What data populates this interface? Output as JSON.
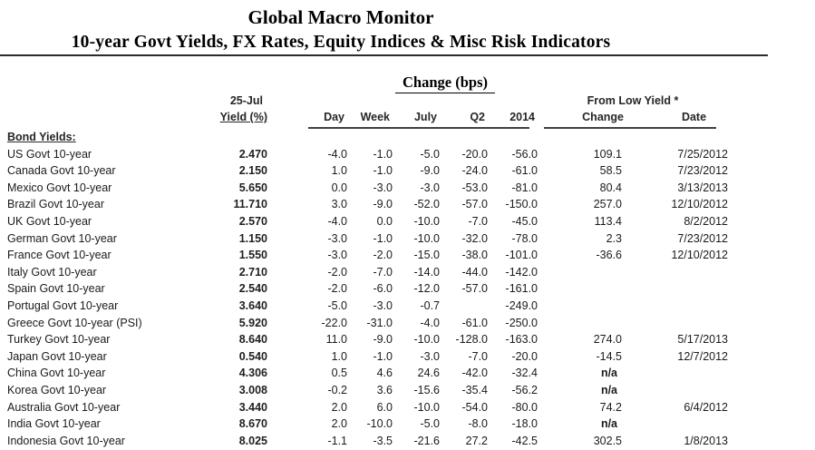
{
  "page": {
    "title": "Global Macro Monitor",
    "subtitle": "10-year Govt Yields, FX Rates, Equity Indices & Misc Risk Indicators"
  },
  "table": {
    "group_change": "Change (bps)",
    "group_from_low": "From Low Yield  *",
    "col_yield_line1": "25-Jul",
    "col_yield_line2": "Yield (%)",
    "col_day": "Day",
    "col_week": "Week",
    "col_july": "July",
    "col_q2": "Q2",
    "col_2014": "2014",
    "col_change": "Change",
    "col_date": "Date",
    "section": "Bond Yields:",
    "rows": [
      {
        "name": "US Govt 10-year",
        "yield": "2.470",
        "day": "-4.0",
        "week": "-1.0",
        "july": "-5.0",
        "q2": "-20.0",
        "y2014": "-56.0",
        "change": "109.1",
        "date": "7/25/2012"
      },
      {
        "name": "Canada Govt 10-year",
        "yield": "2.150",
        "day": "1.0",
        "week": "-1.0",
        "july": "-9.0",
        "q2": "-24.0",
        "y2014": "-61.0",
        "change": "58.5",
        "date": "7/23/2012"
      },
      {
        "name": "Mexico Govt 10-year",
        "yield": "5.650",
        "day": "0.0",
        "week": "-3.0",
        "july": "-3.0",
        "q2": "-53.0",
        "y2014": "-81.0",
        "change": "80.4",
        "date": "3/13/2013"
      },
      {
        "name": "Brazil Govt 10-year",
        "yield": "11.710",
        "day": "3.0",
        "week": "-9.0",
        "july": "-52.0",
        "q2": "-57.0",
        "y2014": "-150.0",
        "change": "257.0",
        "date": "12/10/2012"
      },
      {
        "name": "UK Govt 10-year",
        "yield": "2.570",
        "day": "-4.0",
        "week": "0.0",
        "july": "-10.0",
        "q2": "-7.0",
        "y2014": "-45.0",
        "change": "113.4",
        "date": "8/2/2012"
      },
      {
        "name": "German Govt 10-year",
        "yield": "1.150",
        "day": "-3.0",
        "week": "-1.0",
        "july": "-10.0",
        "q2": "-32.0",
        "y2014": "-78.0",
        "change": "2.3",
        "date": "7/23/2012"
      },
      {
        "name": "France Govt 10-year",
        "yield": "1.550",
        "day": "-3.0",
        "week": "-2.0",
        "july": "-15.0",
        "q2": "-38.0",
        "y2014": "-101.0",
        "change": "-36.6",
        "date": "12/10/2012"
      },
      {
        "name": "Italy Govt 10-year",
        "yield": "2.710",
        "day": "-2.0",
        "week": "-7.0",
        "july": "-14.0",
        "q2": "-44.0",
        "y2014": "-142.0",
        "change": "",
        "date": ""
      },
      {
        "name": "Spain Govt 10-year",
        "yield": "2.540",
        "day": "-2.0",
        "week": "-6.0",
        "july": "-12.0",
        "q2": "-57.0",
        "y2014": "-161.0",
        "change": "",
        "date": ""
      },
      {
        "name": "Portugal Govt 10-year",
        "yield": "3.640",
        "day": "-5.0",
        "week": "-3.0",
        "july": "-0.7",
        "q2": "",
        "y2014": "-249.0",
        "change": "",
        "date": ""
      },
      {
        "name": "Greece Govt 10-year (PSI)",
        "yield": "5.920",
        "day": "-22.0",
        "week": "-31.0",
        "july": "-4.0",
        "q2": "-61.0",
        "y2014": "-250.0",
        "change": "",
        "date": ""
      },
      {
        "name": "Turkey Govt 10-year",
        "yield": "8.640",
        "day": "11.0",
        "week": "-9.0",
        "july": "-10.0",
        "q2": "-128.0",
        "y2014": "-163.0",
        "change": "274.0",
        "date": "5/17/2013"
      },
      {
        "name": "Japan Govt 10-year",
        "yield": "0.540",
        "day": "1.0",
        "week": "-1.0",
        "july": "-3.0",
        "q2": "-7.0",
        "y2014": "-20.0",
        "change": "-14.5",
        "date": "12/7/2012"
      },
      {
        "name": "China Govt 10-year",
        "yield": "4.306",
        "day": "0.5",
        "week": "4.6",
        "july": "24.6",
        "q2": "-42.0",
        "y2014": "-32.4",
        "change": "n/a",
        "date": ""
      },
      {
        "name": "Korea Govt 10-year",
        "yield": "3.008",
        "day": "-0.2",
        "week": "3.6",
        "july": "-15.6",
        "q2": "-35.4",
        "y2014": "-56.2",
        "change": "n/a",
        "date": ""
      },
      {
        "name": "Australia Govt 10-year",
        "yield": "3.440",
        "day": "2.0",
        "week": "6.0",
        "july": "-10.0",
        "q2": "-54.0",
        "y2014": "-80.0",
        "change": "74.2",
        "date": "6/4/2012"
      },
      {
        "name": "India Govt 10-year",
        "yield": "8.670",
        "day": "2.0",
        "week": "-10.0",
        "july": "-5.0",
        "q2": "-8.0",
        "y2014": "-18.0",
        "change": "n/a",
        "date": ""
      },
      {
        "name": "Indonesia Govt 10-year",
        "yield": "8.025",
        "day": "-1.1",
        "week": "-3.5",
        "july": "-21.6",
        "q2": "27.2",
        "y2014": "-42.5",
        "change": "302.5",
        "date": "1/8/2013"
      }
    ]
  }
}
